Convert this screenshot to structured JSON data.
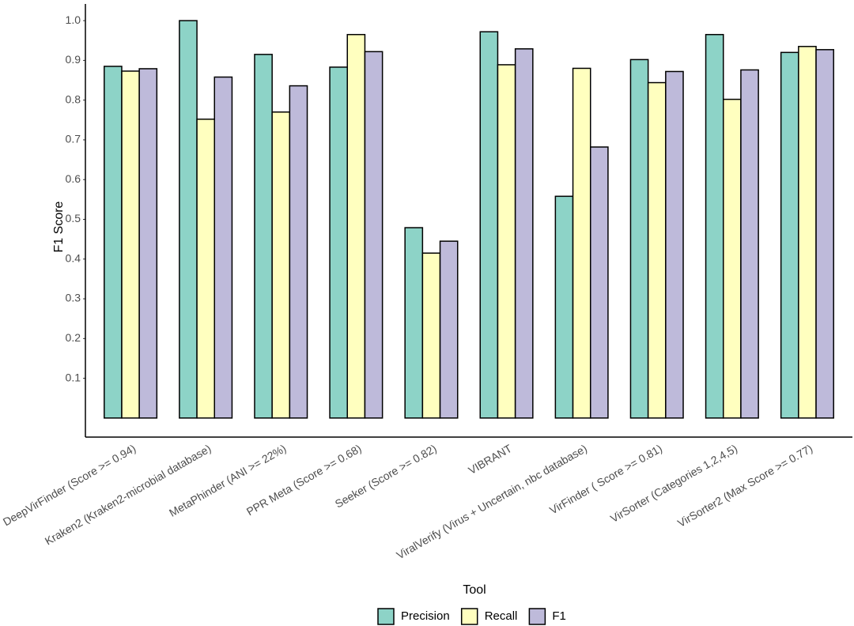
{
  "chart_data": {
    "type": "bar",
    "categories": [
      "DeepVirFinder (Score >= 0.94)",
      "Kraken2 (Kraken2-microbial database)",
      "MetaPhinder (ANI >= 22%)",
      "PPR Meta (Score >= 0.68)",
      "Seeker (Score >= 0.82)",
      "VIBRANT",
      "ViralVerify (Virus + Uncertain, nbc database)",
      "VirFinder ( Score >= 0.81)",
      "VirSorter (Categories 1,2,4,5)",
      "VirSorter2 (Max Score >= 0.77)"
    ],
    "series": [
      {
        "name": "Precision",
        "color": "#8dd3c7",
        "values": [
          0.885,
          1.0,
          0.915,
          0.883,
          0.479,
          0.972,
          0.558,
          0.902,
          0.965,
          0.92
        ]
      },
      {
        "name": "Recall",
        "color": "#ffffbf",
        "values": [
          0.873,
          0.752,
          0.77,
          0.965,
          0.415,
          0.889,
          0.88,
          0.844,
          0.802,
          0.935
        ]
      },
      {
        "name": "F1",
        "color": "#bebada",
        "values": [
          0.879,
          0.858,
          0.836,
          0.922,
          0.445,
          0.929,
          0.682,
          0.872,
          0.876,
          0.927
        ]
      }
    ],
    "x_label": "Tool",
    "y_label": "F1 Score",
    "ylim": [
      -0.048,
      1.042
    ],
    "yticks": [
      0.1,
      0.2,
      0.3,
      0.4,
      0.5,
      0.6,
      0.7,
      0.8,
      0.9,
      {
        "value": 1,
        "label": "1.0"
      }
    ],
    "grid": false,
    "legend": "bottom"
  }
}
